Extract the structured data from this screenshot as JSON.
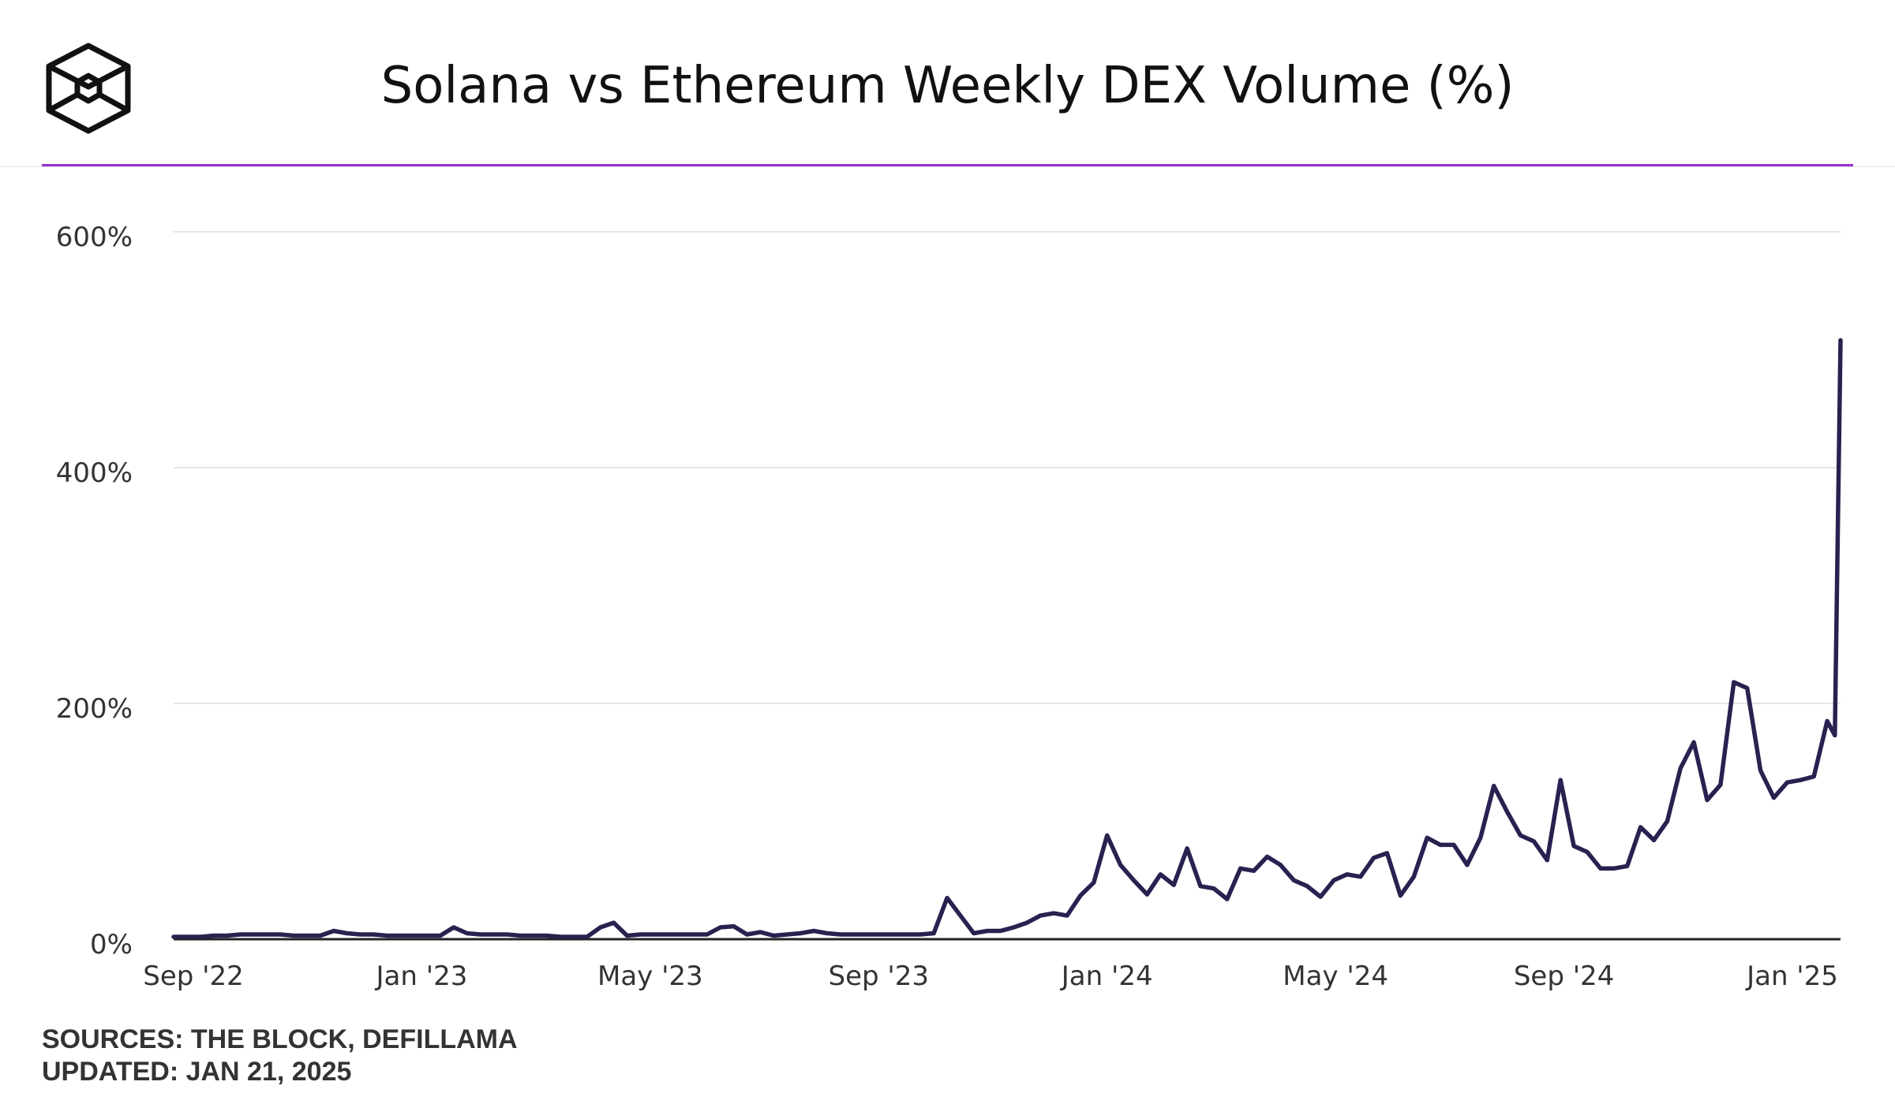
{
  "header": {
    "logo_icon": "cube-outline-icon",
    "accent_color": "#9b2fd0"
  },
  "chart_data": {
    "type": "line",
    "title": "Solana vs Ethereum Weekly DEX Volume (%)",
    "xlabel": "",
    "ylabel": "",
    "x_ticks": [
      "Sep '22",
      "Jan '23",
      "May '23",
      "Sep '23",
      "Jan '24",
      "May '24",
      "Sep '24",
      "Jan '25"
    ],
    "x_range": [
      "2022-08-29",
      "2025-01-20"
    ],
    "ylim": [
      0,
      600
    ],
    "y_ticks": [
      0,
      200,
      400,
      600
    ],
    "y_tick_labels": [
      "0%",
      "200%",
      "400%",
      "600%"
    ],
    "grid": true,
    "line_color": "#2a2150",
    "series": [
      {
        "values": [
          [
            "2022-08-29",
            2
          ],
          [
            "2022-09-05",
            2
          ],
          [
            "2022-09-12",
            2
          ],
          [
            "2022-09-19",
            3
          ],
          [
            "2022-09-26",
            3
          ],
          [
            "2022-10-03",
            4
          ],
          [
            "2022-10-10",
            4
          ],
          [
            "2022-10-17",
            4
          ],
          [
            "2022-10-24",
            4
          ],
          [
            "2022-10-31",
            3
          ],
          [
            "2022-11-07",
            3
          ],
          [
            "2022-11-14",
            3
          ],
          [
            "2022-11-21",
            7
          ],
          [
            "2022-11-28",
            5
          ],
          [
            "2022-12-05",
            4
          ],
          [
            "2022-12-12",
            4
          ],
          [
            "2022-12-19",
            3
          ],
          [
            "2022-12-26",
            3
          ],
          [
            "2023-01-02",
            3
          ],
          [
            "2023-01-09",
            3
          ],
          [
            "2023-01-16",
            3
          ],
          [
            "2023-01-23",
            10
          ],
          [
            "2023-01-30",
            5
          ],
          [
            "2023-02-06",
            4
          ],
          [
            "2023-02-13",
            4
          ],
          [
            "2023-02-20",
            4
          ],
          [
            "2023-02-27",
            3
          ],
          [
            "2023-03-06",
            3
          ],
          [
            "2023-03-13",
            3
          ],
          [
            "2023-03-20",
            2
          ],
          [
            "2023-03-27",
            2
          ],
          [
            "2023-04-03",
            2
          ],
          [
            "2023-04-10",
            10
          ],
          [
            "2023-04-17",
            14
          ],
          [
            "2023-04-24",
            3
          ],
          [
            "2023-05-01",
            4
          ],
          [
            "2023-05-08",
            4
          ],
          [
            "2023-05-15",
            4
          ],
          [
            "2023-05-22",
            4
          ],
          [
            "2023-05-29",
            4
          ],
          [
            "2023-06-05",
            4
          ],
          [
            "2023-06-12",
            10
          ],
          [
            "2023-06-19",
            11
          ],
          [
            "2023-06-26",
            4
          ],
          [
            "2023-07-03",
            6
          ],
          [
            "2023-07-10",
            3
          ],
          [
            "2023-07-17",
            4
          ],
          [
            "2023-07-24",
            5
          ],
          [
            "2023-07-31",
            7
          ],
          [
            "2023-08-07",
            5
          ],
          [
            "2023-08-14",
            4
          ],
          [
            "2023-08-21",
            4
          ],
          [
            "2023-08-28",
            4
          ],
          [
            "2023-09-04",
            4
          ],
          [
            "2023-09-11",
            4
          ],
          [
            "2023-09-18",
            4
          ],
          [
            "2023-09-25",
            4
          ],
          [
            "2023-10-02",
            5
          ],
          [
            "2023-10-09",
            35
          ],
          [
            "2023-10-16",
            20
          ],
          [
            "2023-10-23",
            5
          ],
          [
            "2023-10-30",
            7
          ],
          [
            "2023-11-06",
            7
          ],
          [
            "2023-11-13",
            10
          ],
          [
            "2023-11-20",
            14
          ],
          [
            "2023-11-27",
            20
          ],
          [
            "2023-12-04",
            22
          ],
          [
            "2023-12-11",
            20
          ],
          [
            "2023-12-18",
            37
          ],
          [
            "2023-12-25",
            48
          ],
          [
            "2024-01-01",
            88
          ],
          [
            "2024-01-08",
            63
          ],
          [
            "2024-01-15",
            50
          ],
          [
            "2024-01-22",
            38
          ],
          [
            "2024-01-29",
            55
          ],
          [
            "2024-02-05",
            46
          ],
          [
            "2024-02-12",
            77
          ],
          [
            "2024-02-19",
            45
          ],
          [
            "2024-02-26",
            43
          ],
          [
            "2024-03-04",
            34
          ],
          [
            "2024-03-11",
            60
          ],
          [
            "2024-03-18",
            58
          ],
          [
            "2024-03-25",
            70
          ],
          [
            "2024-04-01",
            63
          ],
          [
            "2024-04-08",
            50
          ],
          [
            "2024-04-15",
            45
          ],
          [
            "2024-04-22",
            36
          ],
          [
            "2024-04-29",
            50
          ],
          [
            "2024-05-06",
            55
          ],
          [
            "2024-05-13",
            53
          ],
          [
            "2024-05-20",
            69
          ],
          [
            "2024-05-27",
            73
          ],
          [
            "2024-06-03",
            37
          ],
          [
            "2024-06-10",
            53
          ],
          [
            "2024-06-17",
            86
          ],
          [
            "2024-06-24",
            80
          ],
          [
            "2024-07-01",
            80
          ],
          [
            "2024-07-08",
            63
          ],
          [
            "2024-07-15",
            86
          ],
          [
            "2024-07-22",
            130
          ],
          [
            "2024-07-29",
            108
          ],
          [
            "2024-08-05",
            88
          ],
          [
            "2024-08-12",
            83
          ],
          [
            "2024-08-19",
            67
          ],
          [
            "2024-08-26",
            135
          ],
          [
            "2024-09-02",
            79
          ],
          [
            "2024-09-09",
            74
          ],
          [
            "2024-09-16",
            60
          ],
          [
            "2024-09-23",
            60
          ],
          [
            "2024-09-30",
            62
          ],
          [
            "2024-10-07",
            95
          ],
          [
            "2024-10-14",
            84
          ],
          [
            "2024-10-21",
            100
          ],
          [
            "2024-10-28",
            145
          ],
          [
            "2024-11-04",
            167
          ],
          [
            "2024-11-11",
            118
          ],
          [
            "2024-11-18",
            131
          ],
          [
            "2024-11-25",
            218
          ],
          [
            "2024-12-02",
            213
          ],
          [
            "2024-12-09",
            143
          ],
          [
            "2024-12-16",
            120
          ],
          [
            "2024-12-23",
            133
          ],
          [
            "2024-12-30",
            135
          ],
          [
            "2025-01-06",
            138
          ],
          [
            "2025-01-13",
            185
          ],
          [
            "2025-01-17",
            173
          ],
          [
            "2025-01-20",
            508
          ]
        ]
      }
    ]
  },
  "footer": {
    "sources": "SOURCES: THE BLOCK, DEFILLAMA",
    "updated": "UPDATED: JAN 21, 2025"
  }
}
